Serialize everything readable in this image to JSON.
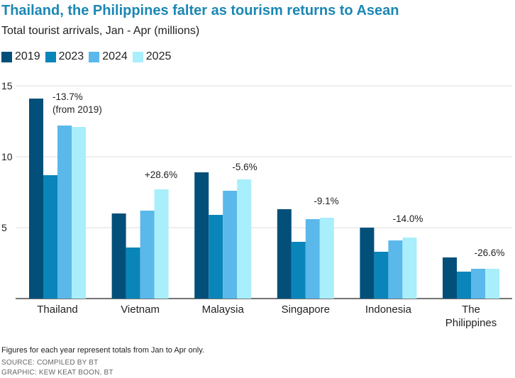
{
  "chart_data": {
    "type": "bar",
    "title": "Thailand, the Philippines falter as tourism returns to Asean",
    "subtitle": "Total tourist arrivals, Jan - Apr (millions)",
    "categories": [
      "Thailand",
      "Vietnam",
      "Malaysia",
      "Singapore",
      "Indonesia",
      "The Philippines"
    ],
    "category_lines": [
      [
        "Thailand"
      ],
      [
        "Vietnam"
      ],
      [
        "Malaysia"
      ],
      [
        "Singapore"
      ],
      [
        "Indonesia"
      ],
      [
        "The",
        "Philippines"
      ]
    ],
    "series": [
      {
        "name": "2019",
        "color": "#024f7a",
        "values": [
          14.1,
          6.0,
          8.9,
          6.3,
          5.0,
          2.9
        ]
      },
      {
        "name": "2023",
        "color": "#0a85b9",
        "values": [
          8.7,
          3.6,
          5.9,
          4.0,
          3.3,
          1.9
        ]
      },
      {
        "name": "2024",
        "color": "#5bb8ea",
        "values": [
          12.2,
          6.2,
          7.6,
          5.6,
          4.1,
          2.1
        ]
      },
      {
        "name": "2025",
        "color": "#a9eefb",
        "values": [
          12.1,
          7.7,
          8.4,
          5.7,
          4.3,
          2.1
        ]
      }
    ],
    "annotations": [
      {
        "lines": [
          "-13.7%",
          "(from 2019)"
        ],
        "category": "Thailand"
      },
      {
        "lines": [
          "+28.6%"
        ],
        "category": "Vietnam"
      },
      {
        "lines": [
          "-5.6%"
        ],
        "category": "Malaysia"
      },
      {
        "lines": [
          "-9.1%"
        ],
        "category": "Singapore"
      },
      {
        "lines": [
          "-14.0%"
        ],
        "category": "Indonesia"
      },
      {
        "lines": [
          "-26.6%"
        ],
        "category": "The Philippines"
      }
    ],
    "ylim": [
      0,
      15
    ],
    "yticks": [
      5,
      10,
      15
    ],
    "grid": true,
    "legend": "top-left"
  },
  "notes": {
    "footnote": "Figures for each year represent totals from Jan to Apr only.",
    "source": "SOURCE: COMPILED BY BT",
    "graphic": "GRAPHIC: KEW KEAT BOON, BT"
  }
}
